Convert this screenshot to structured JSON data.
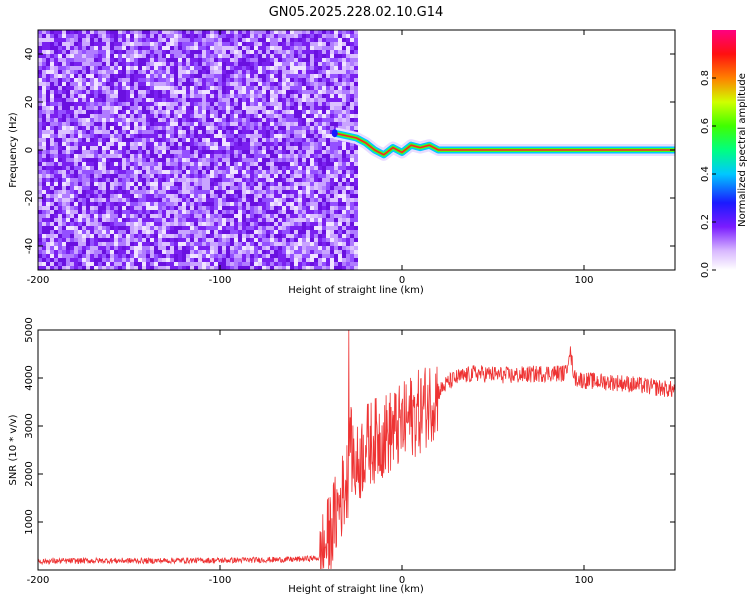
{
  "title": "GN05.2025.228.02.10.G14",
  "chart_data": [
    {
      "type": "heatmap",
      "xlabel": "Height of straight line (km)",
      "ylabel": "Frequency (Hz)",
      "xlim": [
        -200,
        150
      ],
      "ylim": [
        -50,
        50
      ],
      "x_ticks": [
        -200,
        -100,
        0,
        100
      ],
      "y_ticks": [
        -40,
        -20,
        0,
        20,
        40
      ],
      "colorbar": {
        "label": "Normalized spectral amplitude",
        "range": [
          0.0,
          1.0
        ],
        "ticks": [
          0.0,
          0.2,
          0.4,
          0.6,
          0.8
        ]
      },
      "noise_region_x": [
        -200,
        -25
      ],
      "signal_track": [
        {
          "x": -37,
          "y": 7
        },
        {
          "x": -25,
          "y": 5
        },
        {
          "x": -20,
          "y": 3
        },
        {
          "x": -15,
          "y": 0
        },
        {
          "x": -10,
          "y": -2
        },
        {
          "x": -5,
          "y": 1
        },
        {
          "x": 0,
          "y": -1
        },
        {
          "x": 5,
          "y": 2
        },
        {
          "x": 10,
          "y": 1
        },
        {
          "x": 15,
          "y": 2
        },
        {
          "x": 20,
          "y": 0
        },
        {
          "x": 30,
          "y": 0
        },
        {
          "x": 60,
          "y": 0
        },
        {
          "x": 100,
          "y": 0
        },
        {
          "x": 150,
          "y": 0
        }
      ]
    },
    {
      "type": "line",
      "xlabel": "Height of straight line (km)",
      "ylabel": "SNR (10 * v/v)",
      "xlim": [
        -200,
        150
      ],
      "ylim": [
        0,
        5000
      ],
      "x_ticks": [
        -200,
        -100,
        0,
        100
      ],
      "y_ticks": [
        1000,
        2000,
        3000,
        4000,
        5000
      ],
      "color": "#ee3333",
      "series": [
        {
          "x": [
            -200,
            -180,
            -160,
            -140,
            -120,
            -100,
            -80,
            -60,
            -45,
            -40,
            -35,
            -30,
            -28,
            -25,
            -20,
            -15,
            -10,
            -5,
            0,
            5,
            10,
            15,
            20,
            25,
            30,
            40,
            60,
            80,
            90,
            92,
            95,
            100,
            120,
            140,
            150
          ],
          "values": [
            180,
            190,
            195,
            190,
            200,
            200,
            210,
            220,
            250,
            700,
            1300,
            1900,
            2500,
            2100,
            2600,
            2700,
            2800,
            2900,
            3000,
            3200,
            3300,
            3500,
            3700,
            3900,
            4000,
            4100,
            4050,
            4100,
            4100,
            4600,
            4000,
            3950,
            3900,
            3800,
            3750
          ]
        }
      ]
    }
  ]
}
